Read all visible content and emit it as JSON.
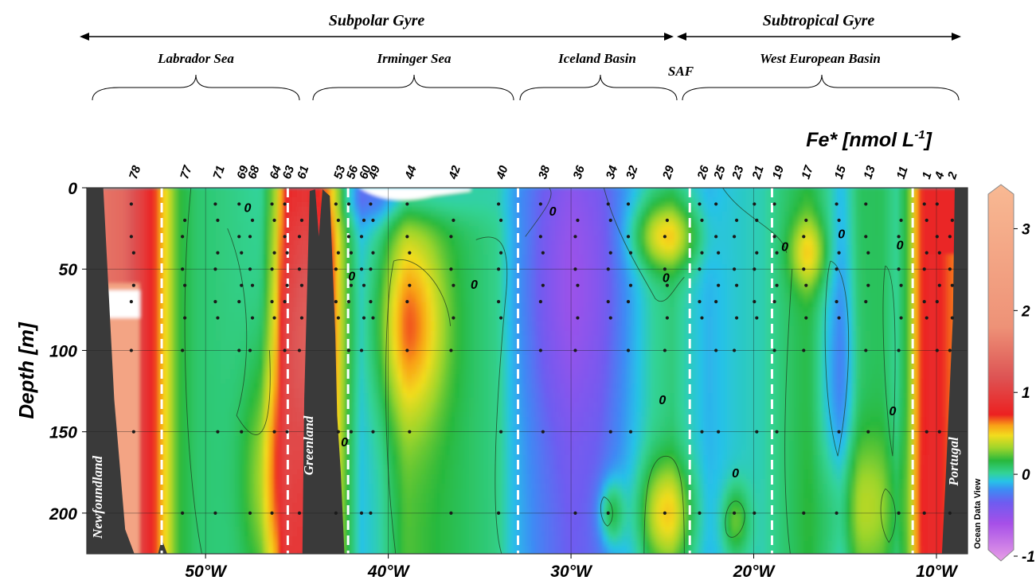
{
  "chart_data": {
    "type": "heatmap",
    "title": "Fe* [nmol L",
    "title_superscript": "-1",
    "title_suffix": "]",
    "ylabel": "Depth [m]",
    "xlim": [
      -56.5,
      -8.3
    ],
    "ylim": [
      0,
      225
    ],
    "x_ticks": [
      {
        "value": -50,
        "label": "50°W"
      },
      {
        "value": -40,
        "label": "40°W"
      },
      {
        "value": -30,
        "label": "30°W"
      },
      {
        "value": -20,
        "label": "20°W"
      },
      {
        "value": -10,
        "label": "10°W"
      }
    ],
    "y_ticks": [
      {
        "value": 0,
        "label": "0"
      },
      {
        "value": 50,
        "label": "50"
      },
      {
        "value": 100,
        "label": "100"
      },
      {
        "value": 150,
        "label": "150"
      },
      {
        "value": 200,
        "label": "200"
      }
    ],
    "colorbar": {
      "min": -1,
      "max": 3.5,
      "ticks": [
        "3",
        "2",
        "1",
        "0",
        "-1"
      ],
      "tick_values": [
        3,
        2,
        1,
        0,
        -1
      ],
      "stops": [
        {
          "v": -1.0,
          "color": "#e79ee6"
        },
        {
          "v": -0.55,
          "color": "#a64fe8"
        },
        {
          "v": -0.3,
          "color": "#6e5cf0"
        },
        {
          "v": -0.15,
          "color": "#3d8bf4"
        },
        {
          "v": -0.05,
          "color": "#27c2e8"
        },
        {
          "v": 0.05,
          "color": "#33d396"
        },
        {
          "v": 0.2,
          "color": "#28b83c"
        },
        {
          "v": 0.35,
          "color": "#9ed52b"
        },
        {
          "v": 0.5,
          "color": "#f2dc1e"
        },
        {
          "v": 0.62,
          "color": "#f9a017"
        },
        {
          "v": 0.75,
          "color": "#ec2121"
        },
        {
          "v": 1.2,
          "color": "#dd5454"
        },
        {
          "v": 1.8,
          "color": "#ee9277"
        },
        {
          "v": 3.5,
          "color": "#f8b993"
        }
      ]
    },
    "stations": [
      {
        "label": "78",
        "x": -54.0
      },
      {
        "label": "77",
        "x": -51.2
      },
      {
        "label": "71",
        "x": -49.4
      },
      {
        "label": "69",
        "x": -48.1
      },
      {
        "label": "68",
        "x": -47.5
      },
      {
        "label": "64",
        "x": -46.3
      },
      {
        "label": "63",
        "x": -45.6
      },
      {
        "label": "61",
        "x": -44.8
      },
      {
        "label": "53",
        "x": -42.8
      },
      {
        "label": "56",
        "x": -42.1
      },
      {
        "label": "60",
        "x": -41.4
      },
      {
        "label": "49",
        "x": -40.9
      },
      {
        "label": "44",
        "x": -38.9
      },
      {
        "label": "42",
        "x": -36.5
      },
      {
        "label": "40",
        "x": -33.9
      },
      {
        "label": "38",
        "x": -31.6
      },
      {
        "label": "36",
        "x": -29.7
      },
      {
        "label": "34",
        "x": -27.9
      },
      {
        "label": "32",
        "x": -26.8
      },
      {
        "label": "29",
        "x": -24.8
      },
      {
        "label": "26",
        "x": -22.9
      },
      {
        "label": "25",
        "x": -22.0
      },
      {
        "label": "23",
        "x": -21.0
      },
      {
        "label": "21",
        "x": -19.9
      },
      {
        "label": "19",
        "x": -18.8
      },
      {
        "label": "17",
        "x": -17.2
      },
      {
        "label": "15",
        "x": -15.4
      },
      {
        "label": "13",
        "x": -13.8
      },
      {
        "label": "11",
        "x": -12.0
      },
      {
        "label": "1",
        "x": -10.6
      },
      {
        "label": "4",
        "x": -9.9
      },
      {
        "label": "2",
        "x": -9.2
      }
    ],
    "sample_depths": [
      10,
      20,
      30,
      40,
      50,
      60,
      70,
      80,
      100,
      150,
      200
    ],
    "province_boundaries": [
      -52.4,
      -45.5,
      -42.2,
      -32.9,
      -23.5,
      -19.0,
      -11.3
    ],
    "gyres": [
      {
        "label": "Subpolar Gyre",
        "x0": -56.5,
        "x1": -23.6
      },
      {
        "label": "Subtropical Gyre",
        "x0": -23.4,
        "x1": -8.3
      }
    ],
    "regions": [
      {
        "label": "Labrador Sea",
        "x0": -56.4,
        "x1": -45.6
      },
      {
        "label": "Irminger Sea",
        "x0": -45.2,
        "x1": -33.2
      },
      {
        "label": "Iceland Basin",
        "x0": -32.7,
        "x1": -23.7
      },
      {
        "label": "West European Basin",
        "x0": -23.4,
        "x1": -8.5
      }
    ],
    "front_label": "SAF",
    "land_labels": [
      "Newfoundland",
      "Greenland",
      "Portugal"
    ],
    "contour_label": "0",
    "watermark": "Ocean Data View"
  }
}
